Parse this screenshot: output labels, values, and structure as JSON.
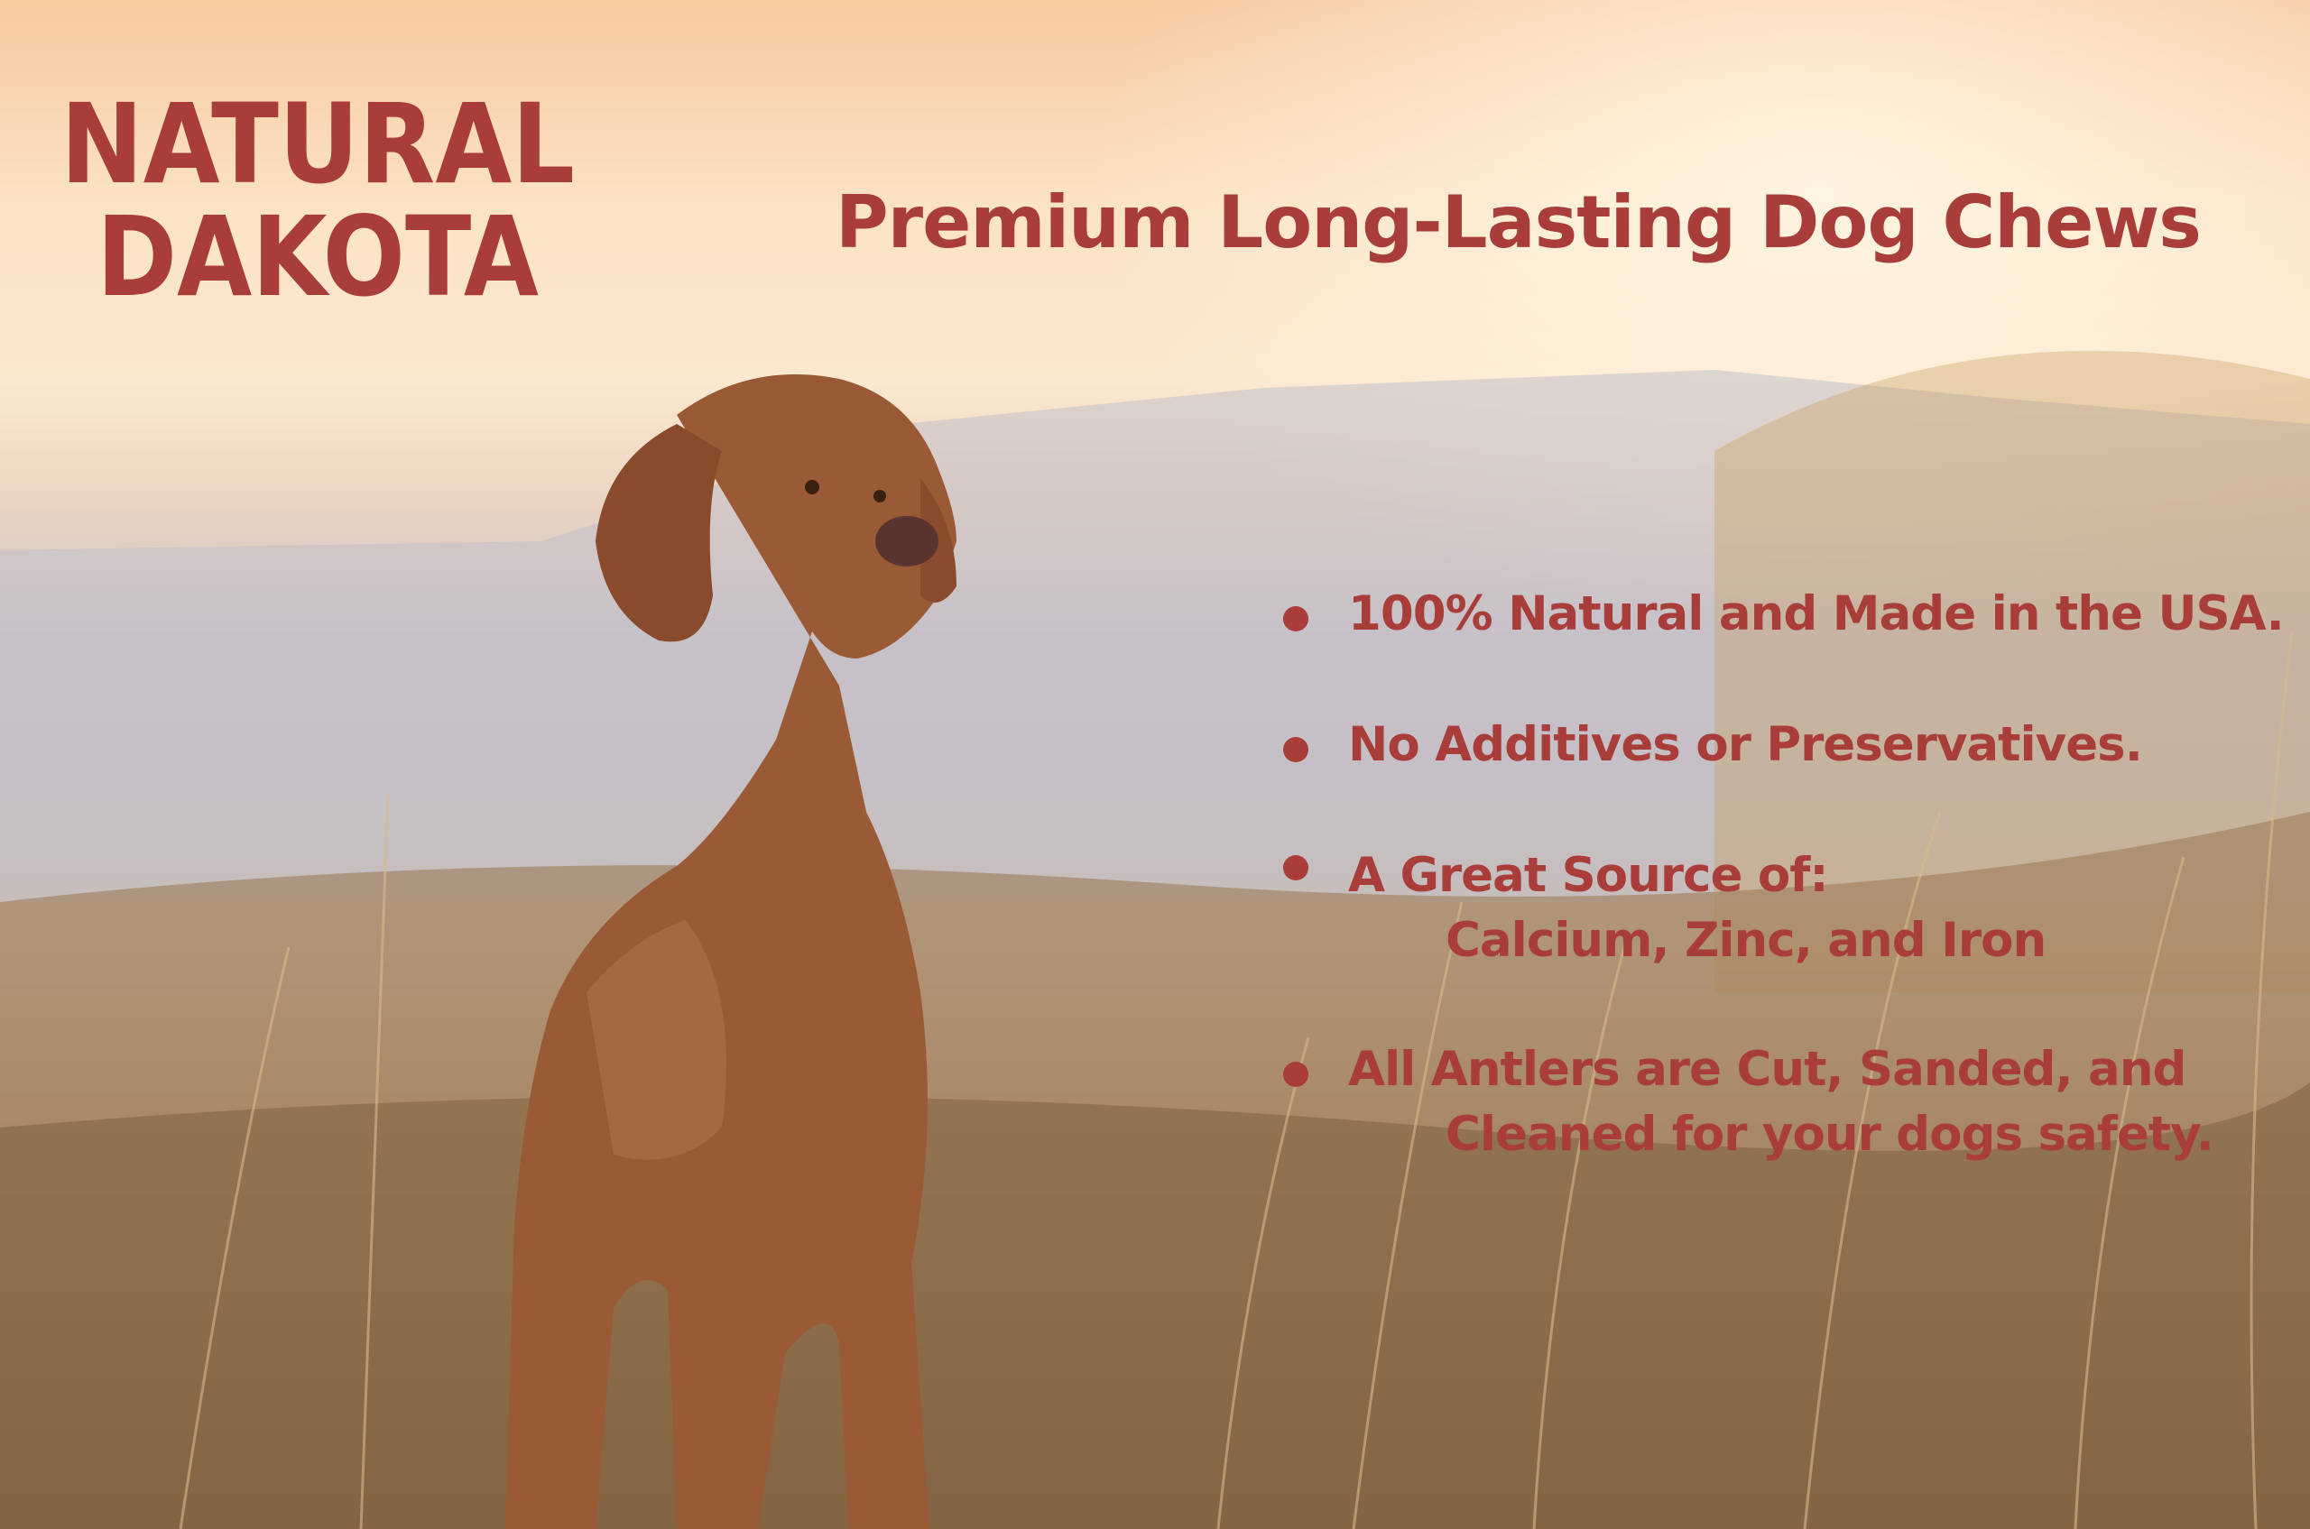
{
  "brand": {
    "logo_text": [
      "NATURAL",
      "DAKOTA"
    ],
    "color": "#a83d3a"
  },
  "headline": "Premium Long-Lasting Dog Chews",
  "features": [
    {
      "line1": "100% Natural and Made in the USA.",
      "line2": ""
    },
    {
      "line1": "No Additives or Preservatives.",
      "line2": ""
    },
    {
      "line1": "A Great Source of:",
      "line2": "Calcium, Zinc, and Iron"
    },
    {
      "line1": "All Antlers are Cut, Sanded, and",
      "line2": "Cleaned for your dogs safety."
    }
  ],
  "photo": {
    "subject": "dog-in-field-icon"
  }
}
